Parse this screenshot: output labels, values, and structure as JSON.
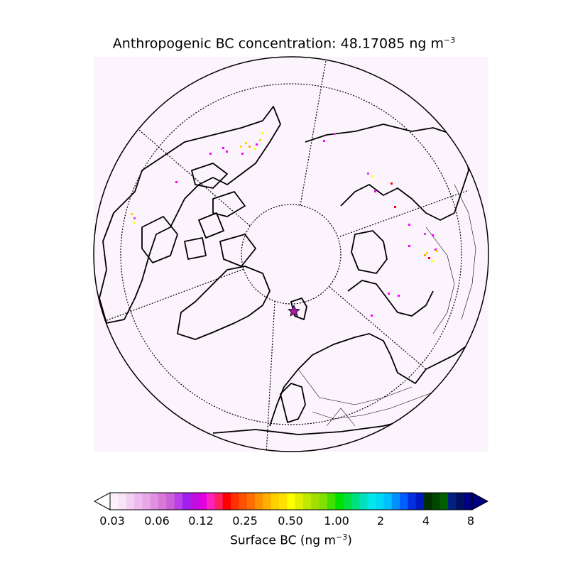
{
  "figure": {
    "title_prefix": "Anthropogenic BC concentration: ",
    "title_value": "48.17085",
    "title_unit": " ng m",
    "title_unit_exp": "−3"
  },
  "map": {
    "projection": "polar orthographic (north pole)",
    "background_color": "#fcf4fc",
    "station_marker": {
      "shape": "star",
      "color": "#a020a0"
    },
    "hotspot_colors": [
      "#ff00ff",
      "#e040e0",
      "#ffd700",
      "#ff0000",
      "#ffa500",
      "#ffff00"
    ]
  },
  "colorbar": {
    "label_prefix": "Surface BC (ng m",
    "label_exp": "−3",
    "label_suffix": ")",
    "ticks": [
      "0.03",
      "0.06",
      "0.12",
      "0.25",
      "0.50",
      "1.00",
      "2",
      "4",
      "8"
    ],
    "colors": [
      "#fbf1fb",
      "#f8e4f8",
      "#f3d0f3",
      "#eebbee",
      "#e8a8e8",
      "#e090e0",
      "#d878d8",
      "#cc60d8",
      "#bb40e8",
      "#a020f0",
      "#c010e0",
      "#e000e0",
      "#ff20c0",
      "#ff2060",
      "#ff0000",
      "#ff3000",
      "#ff5000",
      "#ff7000",
      "#ff9000",
      "#ffb000",
      "#ffd000",
      "#ffe000",
      "#ffff00",
      "#e0f000",
      "#c0e800",
      "#a0e000",
      "#80e000",
      "#40e000",
      "#00e000",
      "#00e040",
      "#00e080",
      "#00e0c0",
      "#00e8e8",
      "#00d8f8",
      "#00c0ff",
      "#0090ff",
      "#0060ff",
      "#0030e0",
      "#0018c0",
      "#003000",
      "#004800",
      "#006000",
      "#002080",
      "#001060",
      "#000080"
    ]
  }
}
